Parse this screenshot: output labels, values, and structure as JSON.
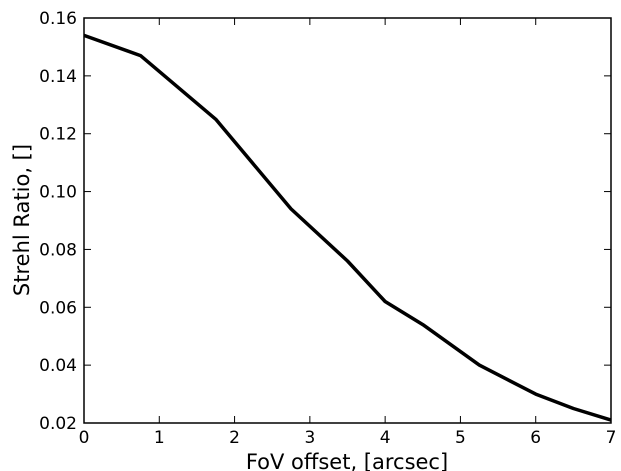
{
  "chart_data": {
    "type": "line",
    "title": "",
    "xlabel": "FoV offset, [arcsec]",
    "ylabel": "Strehl Ratio, []",
    "xlim": [
      0,
      7
    ],
    "ylim": [
      0.02,
      0.16
    ],
    "x_ticks": [
      0,
      1,
      2,
      3,
      4,
      5,
      6,
      7
    ],
    "x_tick_labels": [
      "0",
      "1",
      "2",
      "3",
      "4",
      "5",
      "6",
      "7"
    ],
    "y_ticks": [
      0.02,
      0.04,
      0.06,
      0.08,
      0.1,
      0.12,
      0.14,
      0.16
    ],
    "y_tick_labels": [
      "0.02",
      "0.04",
      "0.06",
      "0.08",
      "0.10",
      "0.12",
      "0.14",
      "0.16"
    ],
    "grid": false,
    "legend": "none",
    "series": [
      {
        "color": "#000000",
        "x": [
          0,
          0.75,
          1.75,
          2.75,
          3.5,
          4,
          4.5,
          5.25,
          6,
          6.5,
          7
        ],
        "y": [
          0.154,
          0.147,
          0.125,
          0.094,
          0.076,
          0.062,
          0.054,
          0.04,
          0.03,
          0.025,
          0.021
        ]
      }
    ]
  }
}
